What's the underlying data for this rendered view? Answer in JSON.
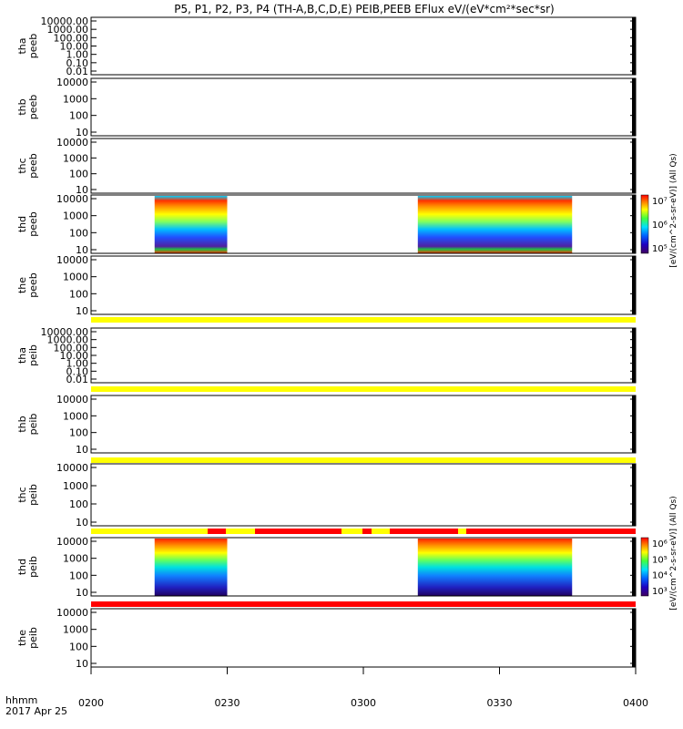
{
  "title": "P5, P1, P2, P3, P4 (TH-A,B,C,D,E) PEIB,PEEB EFlux eV/(eV*cm²*sec*sr)",
  "x_axis": {
    "ticks": [
      "0200",
      "0230",
      "0300",
      "0330",
      "0400"
    ],
    "corner_label": "hhmm",
    "date_label": "2017 Apr 25"
  },
  "colorbars": [
    {
      "label": "[eV/(cm^2-s-sr-eV)] (All Qs)",
      "tick_labels": [
        "10⁵",
        "10⁶",
        "10⁷"
      ]
    },
    {
      "label": "[eV/(cm^2-s-sr-eV)] (All Qs)",
      "tick_labels": [
        "10³",
        "10⁴",
        "10⁵",
        "10⁶"
      ]
    }
  ],
  "chart_data": {
    "type": "heatmap",
    "x_range_hhmm": [
      "0200",
      "0400"
    ],
    "y_scale": "log",
    "panels": [
      {
        "probe": "tha",
        "product": "peeb",
        "y_ticks": [
          "10000.00",
          "1000.00",
          "100.00",
          "10.00",
          "1.00",
          "0.10",
          "0.01"
        ],
        "data_intervals": [],
        "flag_bar": null
      },
      {
        "probe": "thb",
        "product": "peeb",
        "y_ticks": [
          "10000",
          "1000",
          "100",
          "10"
        ],
        "data_intervals": [],
        "flag_bar": null
      },
      {
        "probe": "thc",
        "product": "peeb",
        "y_ticks": [
          "10000",
          "1000",
          "100",
          "10"
        ],
        "data_intervals": [],
        "flag_bar": null
      },
      {
        "probe": "thd",
        "product": "peeb",
        "y_ticks": [
          "10000",
          "1000",
          "100",
          "10"
        ],
        "data_intervals": [
          [
            "0214",
            "0230"
          ],
          [
            "0312",
            "0346"
          ]
        ],
        "flag_bar": null
      },
      {
        "probe": "the",
        "product": "peeb",
        "y_ticks": [
          "10000",
          "1000",
          "100",
          "10"
        ],
        "data_intervals": [],
        "flag_bar": "yellow"
      },
      {
        "probe": "tha",
        "product": "peib",
        "y_ticks": [
          "10000.00",
          "1000.00",
          "100.00",
          "10.00",
          "1.00",
          "0.10",
          "0.01"
        ],
        "data_intervals": [],
        "flag_bar": "yellow"
      },
      {
        "probe": "thb",
        "product": "peib",
        "y_ticks": [
          "10000",
          "1000",
          "100",
          "10"
        ],
        "data_intervals": [],
        "flag_bar": "yellow"
      },
      {
        "probe": "thc",
        "product": "peib",
        "y_ticks": [
          "10000",
          "1000",
          "100",
          "10"
        ],
        "data_intervals": [],
        "flag_bar": "mixed"
      },
      {
        "probe": "thd",
        "product": "peib",
        "y_ticks": [
          "10000",
          "1000",
          "100",
          "10"
        ],
        "data_intervals": [
          [
            "0214",
            "0230"
          ],
          [
            "0312",
            "0346"
          ]
        ],
        "flag_bar": "red"
      },
      {
        "probe": "the",
        "product": "peib",
        "y_ticks": [
          "10000",
          "1000",
          "100",
          "10"
        ],
        "data_intervals": [],
        "flag_bar": null
      }
    ]
  },
  "colors": {
    "flag_yellow": "#ffff00",
    "flag_red": "#ff0000",
    "axis": "#000000"
  }
}
